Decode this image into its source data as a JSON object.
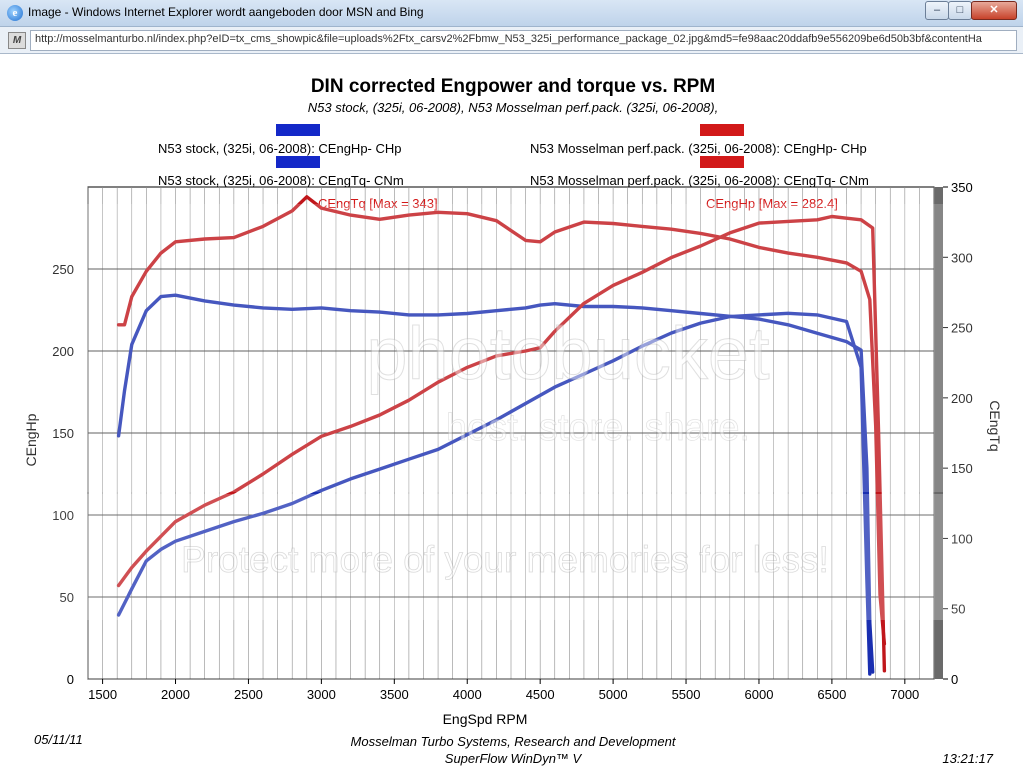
{
  "window": {
    "title": "Image - Windows Internet Explorer wordt aangeboden door MSN and Bing",
    "minimize": "–",
    "maximize": "□",
    "close": "✕",
    "icon": "ie-icon"
  },
  "address_bar": {
    "url": "http://mosselmanturbo.nl/index.php?eID=tx_cms_showpic&file=uploads%2Ftx_carsv2%2Fbmw_N53_325i_performance_package_02.jpg&md5=fe98aac20ddafb9e556209be6d50b3bf&contentHa"
  },
  "watermark": {
    "line1": "photobucket",
    "line2": "host. store. share.",
    "line3": "Protect more of your memories for less!"
  },
  "chart_data": {
    "type": "line",
    "title": "DIN corrected Engpower and torque vs. RPM",
    "subtitle": "N53 stock, (325i, 06-2008), N53 Mosselman perf.pack. (325i, 06-2008),",
    "xlabel": "EngSpd  RPM",
    "ylabel_left": "CEngHp",
    "ylabel_right": "CEngTq",
    "xlim": [
      1400,
      7200
    ],
    "ylim_left": [
      0,
      300
    ],
    "ylim_right": [
      0,
      350
    ],
    "x_ticks": [
      1500,
      2000,
      2500,
      3000,
      3500,
      4000,
      4500,
      5000,
      5500,
      6000,
      6500,
      7000
    ],
    "y_left_ticks": [
      0,
      50,
      100,
      150,
      200,
      250
    ],
    "y_right_ticks": [
      0,
      50,
      100,
      150,
      200,
      250,
      300,
      350
    ],
    "legend": [
      {
        "label": "N53 stock, (325i, 06-2008): CEngHp-  CHp",
        "color": "#1428c8",
        "position": "left"
      },
      {
        "label": "N53 stock, (325i, 06-2008): CEngTq-  CNm",
        "color": "#1428c8",
        "position": "left"
      },
      {
        "label": "N53 Mosselman perf.pack. (325i, 06-2008): CEngHp-  CHp",
        "color": "#d21919",
        "position": "right"
      },
      {
        "label": "N53 Mosselman perf.pack. (325i, 06-2008): CEngTq-  CNm",
        "color": "#d21919",
        "position": "right"
      }
    ],
    "annotations": [
      {
        "text": "CEngTq [Max = 343]",
        "x": 3200,
        "y": 286,
        "color": "#d21919"
      },
      {
        "text": "CEngHp [Max = 282.4]",
        "x": 6200,
        "y": 286,
        "color": "#d21919"
      }
    ],
    "series": [
      {
        "name": "N53 stock CEngHp",
        "axis": "left",
        "color": "#1a2fb0",
        "x": [
          1610,
          1700,
          1800,
          1900,
          2000,
          2200,
          2400,
          2600,
          2800,
          3000,
          3200,
          3400,
          3600,
          3800,
          4000,
          4200,
          4400,
          4600,
          4800,
          5000,
          5200,
          5400,
          5600,
          5800,
          6000,
          6200,
          6400,
          6600,
          6700,
          6740,
          6760
        ],
        "y": [
          39,
          55,
          72,
          79,
          84,
          90,
          96,
          101,
          107,
          115,
          122,
          128,
          134,
          140,
          149,
          158,
          168,
          178,
          186,
          194,
          203,
          211,
          217,
          221,
          222,
          223,
          222,
          218,
          190,
          60,
          3
        ]
      },
      {
        "name": "N53 stock CEngTq",
        "axis": "right",
        "color": "#1a2fb0",
        "x": [
          1610,
          1650,
          1700,
          1800,
          1900,
          2000,
          2200,
          2400,
          2600,
          2800,
          3000,
          3200,
          3400,
          3600,
          3800,
          4000,
          4200,
          4400,
          4500,
          4600,
          4800,
          5000,
          5200,
          5400,
          5600,
          5800,
          6000,
          6200,
          6400,
          6600,
          6700,
          6740,
          6760,
          6780
        ],
        "y": [
          173,
          205,
          238,
          262,
          272,
          273,
          269,
          266,
          264,
          263,
          264,
          262,
          261,
          259,
          259,
          260,
          262,
          264,
          266,
          267,
          265,
          265,
          264,
          262,
          260,
          258,
          256,
          252,
          246,
          240,
          234,
          150,
          40,
          5
        ]
      },
      {
        "name": "N53 Mosselman CEngHp",
        "axis": "left",
        "color": "#c0161b",
        "x": [
          1610,
          1700,
          1800,
          1900,
          2000,
          2200,
          2400,
          2600,
          2800,
          3000,
          3200,
          3400,
          3600,
          3800,
          4000,
          4200,
          4400,
          4500,
          4600,
          4800,
          5000,
          5200,
          5400,
          5600,
          5800,
          6000,
          6200,
          6400,
          6500,
          6600,
          6700,
          6780,
          6820,
          6860
        ],
        "y": [
          57,
          68,
          78,
          87,
          96,
          106,
          114,
          125,
          137,
          148,
          154,
          161,
          170,
          181,
          190,
          197,
          200,
          202,
          212,
          229,
          240,
          248,
          257,
          264,
          272,
          278,
          279,
          280,
          282,
          281,
          280,
          275,
          150,
          5
        ]
      },
      {
        "name": "N53 Mosselman CEngTq",
        "axis": "right",
        "color": "#c0161b",
        "x": [
          1610,
          1650,
          1700,
          1800,
          1900,
          2000,
          2200,
          2400,
          2600,
          2800,
          2900,
          3000,
          3200,
          3400,
          3600,
          3800,
          4000,
          4200,
          4400,
          4500,
          4600,
          4800,
          5000,
          5200,
          5400,
          5600,
          5800,
          6000,
          6200,
          6400,
          6600,
          6700,
          6760,
          6800,
          6830,
          6860
        ],
        "y": [
          252,
          252,
          272,
          290,
          303,
          311,
          313,
          314,
          322,
          333,
          343,
          335,
          330,
          327,
          330,
          332,
          331,
          326,
          312,
          311,
          318,
          325,
          324,
          322,
          320,
          317,
          313,
          307,
          303,
          300,
          296,
          290,
          270,
          180,
          60,
          25
        ]
      }
    ]
  },
  "footer": {
    "date": "05/11/11",
    "line1": "Mosselman Turbo Systems, Research and Development",
    "line2": "SuperFlow WinDyn™ V",
    "time": "13:21:17"
  }
}
